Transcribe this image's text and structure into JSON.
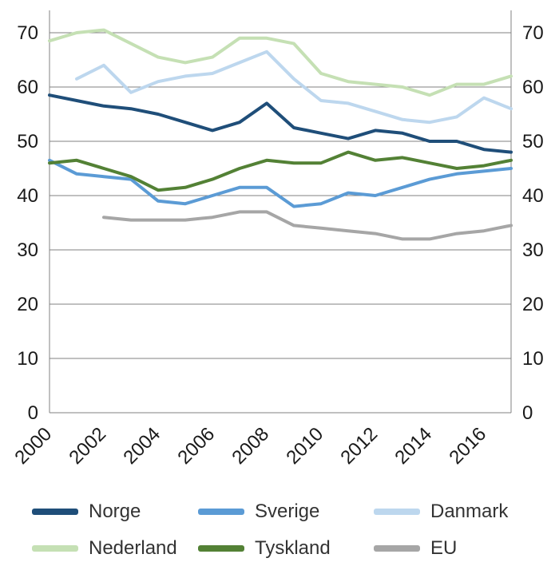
{
  "chart_data": {
    "type": "line",
    "x": [
      2000,
      2001,
      2002,
      2003,
      2004,
      2005,
      2006,
      2007,
      2008,
      2009,
      2010,
      2011,
      2012,
      2013,
      2014,
      2015,
      2016,
      2017
    ],
    "series": [
      {
        "name": "Norge",
        "color": "#1f4e79",
        "values": [
          58.5,
          57.5,
          56.5,
          56,
          55,
          53.5,
          52,
          53.5,
          57,
          52.5,
          51.5,
          50.5,
          52,
          51.5,
          50,
          50,
          48.5,
          48
        ]
      },
      {
        "name": "Sverige",
        "color": "#5b9bd5",
        "values": [
          46.5,
          44,
          43.5,
          43,
          39,
          38.5,
          40,
          41.5,
          41.5,
          38,
          38.5,
          40.5,
          40,
          41.5,
          43,
          44,
          44.5,
          45
        ]
      },
      {
        "name": "Danmark",
        "color": "#bdd7ee",
        "values": [
          null,
          61.5,
          64,
          59,
          61,
          62,
          62.5,
          64.5,
          66.5,
          61.5,
          57.5,
          57,
          55.5,
          54,
          53.5,
          54.5,
          58,
          56
        ]
      },
      {
        "name": "Nederland",
        "color": "#c5e0b4",
        "values": [
          68.5,
          70,
          70.5,
          68,
          65.5,
          64.5,
          65.5,
          69,
          69,
          68,
          62.5,
          61,
          60.5,
          60,
          58.5,
          60.5,
          60.5,
          62
        ]
      },
      {
        "name": "Tyskland",
        "color": "#538135",
        "values": [
          46,
          46.5,
          45,
          43.5,
          41,
          41.5,
          43,
          45,
          46.5,
          46,
          46,
          48,
          46.5,
          47,
          46,
          45,
          45.5,
          46.5
        ]
      },
      {
        "name": "EU",
        "color": "#a6a6a6",
        "values": [
          null,
          null,
          36,
          35.5,
          35.5,
          35.5,
          36,
          37,
          37,
          34.5,
          34,
          33.5,
          33,
          32,
          32,
          33,
          33.5,
          34.5
        ]
      }
    ],
    "title": "",
    "xlabel": "",
    "ylabel": "",
    "ylim": [
      0,
      74
    ],
    "x_range": [
      2000,
      2017
    ],
    "y_ticks": [
      0,
      10,
      20,
      30,
      40,
      50,
      60,
      70
    ],
    "x_tick_labels": [
      "2000",
      "2002",
      "2004",
      "2006",
      "2008",
      "2010",
      "2012",
      "2014",
      "2016"
    ],
    "grid": true,
    "y_labels_both_sides": true,
    "legend_position": "bottom"
  }
}
